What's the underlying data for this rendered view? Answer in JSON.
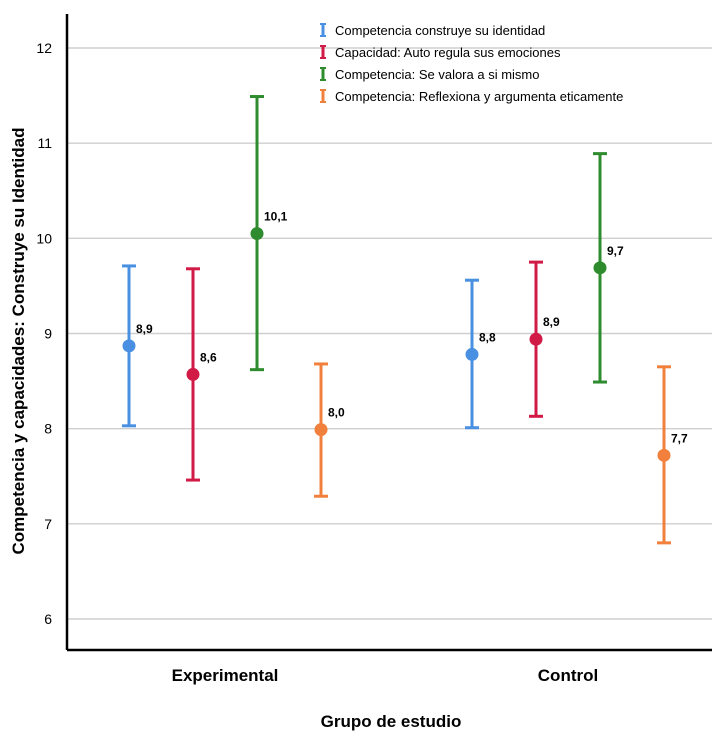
{
  "chart_data": {
    "type": "errorbar",
    "xlabel": "Grupo de estudio",
    "ylabel": "Competencia y capacidades: Construye su Identidad",
    "ylim": [
      5.7,
      12.4
    ],
    "yticks": [
      6,
      7,
      8,
      9,
      10,
      11,
      12
    ],
    "grid": true,
    "legend_position": "top-right",
    "categories": [
      "Experimental",
      "Control"
    ],
    "series": [
      {
        "name": "Competencia construye su identidad",
        "color": "#4a90e2",
        "means": [
          8.87,
          8.78
        ],
        "lower": [
          8.03,
          8.01
        ],
        "upper": [
          9.71,
          9.56
        ],
        "labels": [
          "8,9",
          "8,8"
        ]
      },
      {
        "name": "Capacidad: Auto regula sus emociones",
        "color": "#d21a47",
        "means": [
          8.57,
          8.94
        ],
        "lower": [
          7.46,
          8.13
        ],
        "upper": [
          9.68,
          9.75
        ],
        "labels": [
          "8,6",
          "8,9"
        ]
      },
      {
        "name": "Competencia: Se valora a si mismo",
        "color": "#2e8b2e",
        "means": [
          10.05,
          9.69
        ],
        "lower": [
          8.62,
          8.49
        ],
        "upper": [
          11.49,
          10.89
        ],
        "labels": [
          "10,1",
          "9,7"
        ]
      },
      {
        "name": "Competencia: Reflexiona y argumenta eticamente",
        "color": "#f0803c",
        "means": [
          7.99,
          7.72
        ],
        "lower": [
          7.29,
          6.8
        ],
        "upper": [
          8.68,
          8.65
        ],
        "labels": [
          "8,0",
          "7,7"
        ]
      }
    ]
  }
}
